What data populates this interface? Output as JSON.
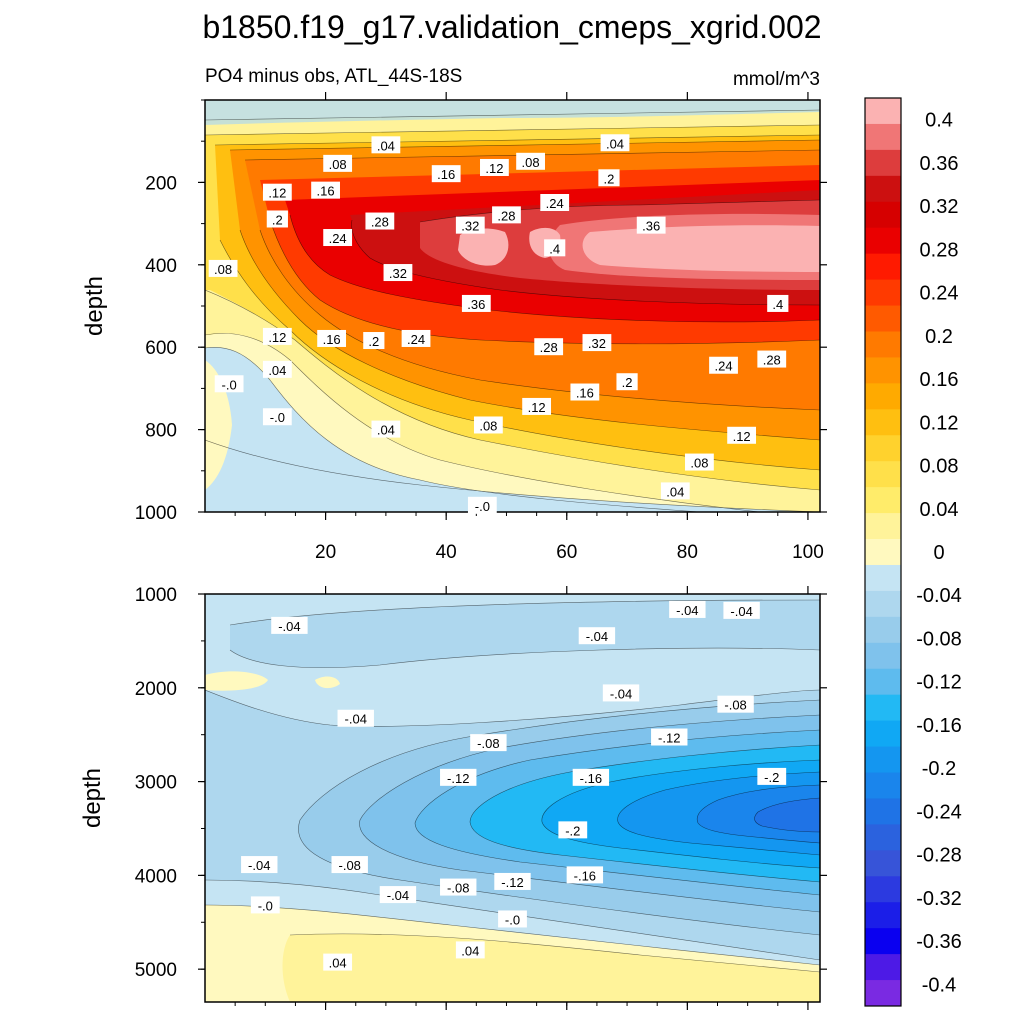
{
  "chart_data": {
    "type": "contour",
    "title": "b1850.f19_g17.validation_cmeps_xgrid.002",
    "subtitle_left": "PO4 minus obs, ATL_44S-18S",
    "units": "mmol/m^3",
    "xlim": [
      0,
      102
    ],
    "x_ticks": [
      20,
      40,
      60,
      80,
      100
    ],
    "x_tick_labels": [
      "20",
      "40",
      "60",
      "80",
      "100"
    ],
    "panels": [
      {
        "name": "upper",
        "ylabel": "depth",
        "ylim": [
          0,
          1000
        ],
        "y_ticks": [
          200,
          400,
          600,
          800,
          1000
        ],
        "y_tick_labels": [
          "200",
          "400",
          "600",
          "800",
          "1000"
        ],
        "contour_labels": [
          {
            "text": ".04",
            "x": 30,
            "y": 110
          },
          {
            "text": ".04",
            "x": 68,
            "y": 105
          },
          {
            "text": ".08",
            "x": 22,
            "y": 155
          },
          {
            "text": ".16",
            "x": 40,
            "y": 180
          },
          {
            "text": ".12",
            "x": 48,
            "y": 165
          },
          {
            "text": ".08",
            "x": 54,
            "y": 150
          },
          {
            "text": ".2",
            "x": 67,
            "y": 190
          },
          {
            "text": ".12",
            "x": 12,
            "y": 225
          },
          {
            "text": ".16",
            "x": 20,
            "y": 220
          },
          {
            "text": ".24",
            "x": 58,
            "y": 250
          },
          {
            "text": ".28",
            "x": 50,
            "y": 280
          },
          {
            "text": ".2",
            "x": 12,
            "y": 290
          },
          {
            "text": ".28",
            "x": 29,
            "y": 295
          },
          {
            "text": ".32",
            "x": 44,
            "y": 305
          },
          {
            "text": ".36",
            "x": 74,
            "y": 305
          },
          {
            "text": ".24",
            "x": 22,
            "y": 335
          },
          {
            "text": ".4",
            "x": 58,
            "y": 360
          },
          {
            "text": ".32",
            "x": 32,
            "y": 420
          },
          {
            "text": ".08",
            "x": 3,
            "y": 410
          },
          {
            "text": ".36",
            "x": 45,
            "y": 495
          },
          {
            "text": ".4",
            "x": 95,
            "y": 495
          },
          {
            "text": ".12",
            "x": 12,
            "y": 575
          },
          {
            "text": ".16",
            "x": 21,
            "y": 580
          },
          {
            "text": ".2",
            "x": 28,
            "y": 585
          },
          {
            "text": ".24",
            "x": 35,
            "y": 580
          },
          {
            "text": ".28",
            "x": 57,
            "y": 600
          },
          {
            "text": ".32",
            "x": 65,
            "y": 590
          },
          {
            "text": ".28",
            "x": 94,
            "y": 630
          },
          {
            "text": ".24",
            "x": 86,
            "y": 645
          },
          {
            "text": ".04",
            "x": 12,
            "y": 655
          },
          {
            "text": "-.0",
            "x": 4,
            "y": 690
          },
          {
            "text": ".2",
            "x": 70,
            "y": 685
          },
          {
            "text": ".16",
            "x": 63,
            "y": 710
          },
          {
            "text": ".12",
            "x": 55,
            "y": 745
          },
          {
            "text": "-.0",
            "x": 12,
            "y": 770
          },
          {
            "text": ".04",
            "x": 30,
            "y": 800
          },
          {
            "text": ".08",
            "x": 47,
            "y": 790
          },
          {
            "text": ".12",
            "x": 89,
            "y": 815
          },
          {
            "text": ".08",
            "x": 82,
            "y": 880
          },
          {
            "text": ".04",
            "x": 78,
            "y": 950
          },
          {
            "text": "-.0",
            "x": 46,
            "y": 985
          }
        ]
      },
      {
        "name": "lower",
        "ylabel": "depth",
        "ylim": [
          1000,
          5350
        ],
        "y_ticks": [
          1000,
          2000,
          3000,
          4000,
          5000
        ],
        "y_tick_labels": [
          "1000",
          "2000",
          "3000",
          "4000",
          "5000"
        ],
        "contour_labels": [
          {
            "text": "-.04",
            "x": 14,
            "y": 1340
          },
          {
            "text": "-.04",
            "x": 80,
            "y": 1170
          },
          {
            "text": "-.04",
            "x": 89,
            "y": 1180
          },
          {
            "text": "-.04",
            "x": 65,
            "y": 1450
          },
          {
            "text": "-.04",
            "x": 69,
            "y": 2060
          },
          {
            "text": "-.08",
            "x": 88,
            "y": 2180
          },
          {
            "text": "-.04",
            "x": 25,
            "y": 2330
          },
          {
            "text": "-.08",
            "x": 47,
            "y": 2590
          },
          {
            "text": "-.12",
            "x": 77,
            "y": 2530
          },
          {
            "text": "-.12",
            "x": 42,
            "y": 2960
          },
          {
            "text": "-.16",
            "x": 64,
            "y": 2960
          },
          {
            "text": "-.2",
            "x": 94,
            "y": 2950
          },
          {
            "text": "-.2",
            "x": 61,
            "y": 3520
          },
          {
            "text": "-.04",
            "x": 9,
            "y": 3890
          },
          {
            "text": "-.08",
            "x": 24,
            "y": 3890
          },
          {
            "text": "-.16",
            "x": 63,
            "y": 4000
          },
          {
            "text": "-.12",
            "x": 51,
            "y": 4070
          },
          {
            "text": "-.08",
            "x": 42,
            "y": 4130
          },
          {
            "text": "-.04",
            "x": 32,
            "y": 4210
          },
          {
            "text": "-.0",
            "x": 10,
            "y": 4320
          },
          {
            "text": "-.0",
            "x": 51,
            "y": 4470
          },
          {
            "text": ".04",
            "x": 44,
            "y": 4800
          },
          {
            "text": ".04",
            "x": 22,
            "y": 4930
          }
        ]
      }
    ],
    "colorbar": {
      "labels": [
        "0.4",
        "0.36",
        "0.32",
        "0.28",
        "0.24",
        "0.2",
        "0.16",
        "0.12",
        "0.08",
        "0.04",
        "0",
        "-0.04",
        "-0.08",
        "-0.12",
        "-0.16",
        "-0.2",
        "-0.24",
        "-0.28",
        "-0.32",
        "-0.36",
        "-0.4"
      ],
      "colors": [
        "#fbb2b2",
        "#f07676",
        "#dd3d3d",
        "#cc1010",
        "#d60000",
        "#ea0000",
        "#ff1a00",
        "#ff3a00",
        "#ff5a00",
        "#ff7a00",
        "#ff9300",
        "#ffaa00",
        "#ffbf10",
        "#ffd22d",
        "#ffe04a",
        "#ffec6a",
        "#fff39a",
        "#fff9bf",
        "#c5e4f3",
        "#aed7ee",
        "#98cceb",
        "#7fc2ec",
        "#5ebbee",
        "#22b9f4",
        "#10a8f4",
        "#1496f0",
        "#1a85ec",
        "#1f73e6",
        "#2b62de",
        "#3754d8",
        "#2c3ae0",
        "#1b1ee8",
        "#0a00f0",
        "#4d1ae6",
        "#7a2ae2"
      ]
    }
  }
}
